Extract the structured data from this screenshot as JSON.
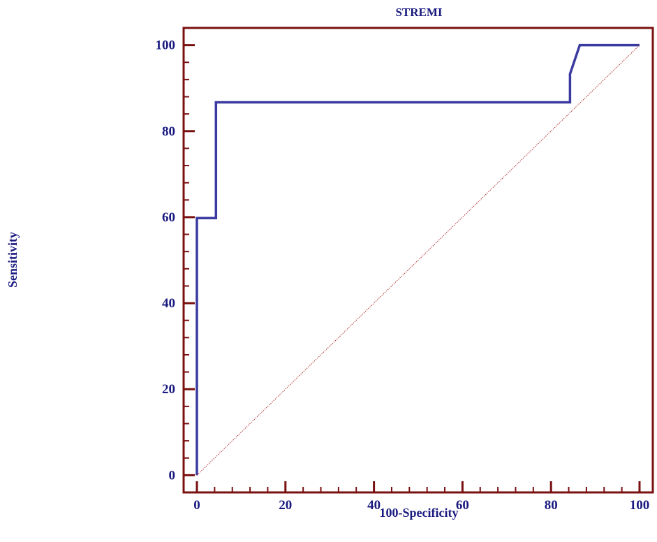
{
  "chart_data": {
    "type": "line",
    "title": "STREMI",
    "xlabel": "100-Specificity",
    "ylabel": "Sensitivity",
    "xlim": [
      -3,
      103
    ],
    "ylim": [
      -4,
      104
    ],
    "x_ticks": [
      0,
      20,
      40,
      60,
      80,
      100
    ],
    "y_ticks": [
      0,
      20,
      40,
      60,
      80,
      100
    ],
    "x_minor_step": 4,
    "y_minor_step": 4,
    "grid": false,
    "colors": {
      "axes": "#7a1010",
      "curve": "#3a3aa0",
      "reference": "#b03030",
      "text": "#1a1a80"
    },
    "series": [
      {
        "type": "step-line",
        "x": [
          0,
          0,
          4.3,
          4.3,
          84.3,
          84.3,
          86.5,
          100
        ],
        "y": [
          0,
          59.8,
          59.8,
          86.7,
          86.7,
          93.3,
          100,
          100
        ]
      },
      {
        "type": "reference-line",
        "x": [
          0,
          100
        ],
        "y": [
          0,
          100
        ]
      }
    ]
  }
}
